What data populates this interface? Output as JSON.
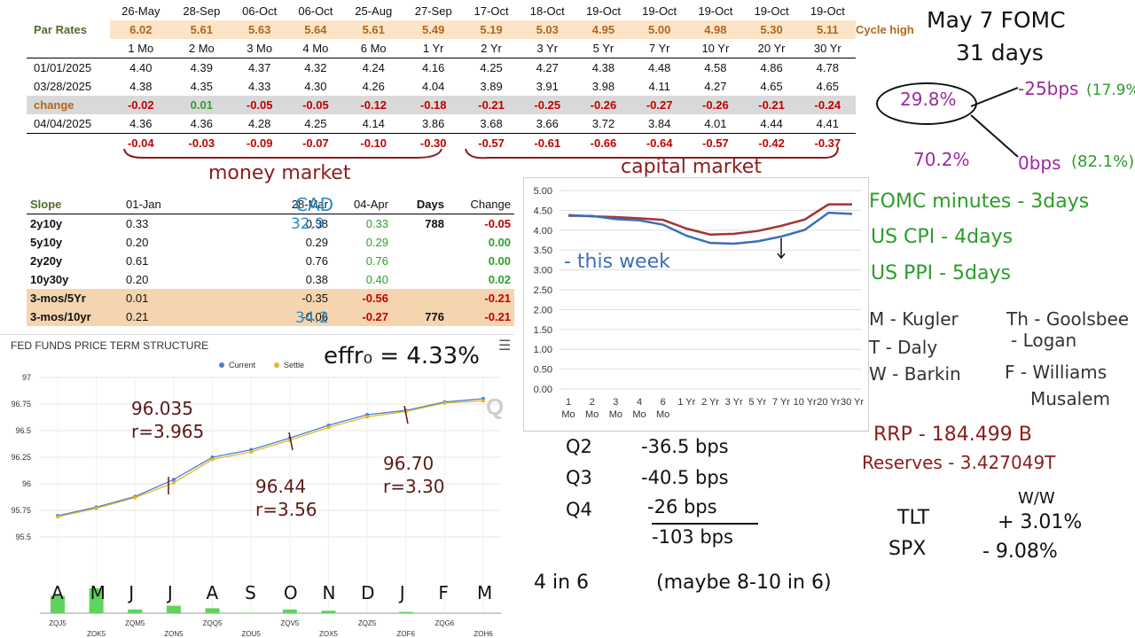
{
  "rates_table": {
    "dates": [
      "26-May",
      "28-Sep",
      "06-Oct",
      "06-Oct",
      "25-Aug",
      "27-Sep",
      "17-Oct",
      "18-Oct",
      "19-Oct",
      "19-Oct",
      "19-Oct",
      "19-Oct",
      "19-Oct"
    ],
    "par_label": "Par Rates",
    "par_values": [
      "6.02",
      "5.61",
      "5.63",
      "5.64",
      "5.61",
      "5.49",
      "5.19",
      "5.03",
      "4.95",
      "5.00",
      "4.98",
      "5.30",
      "5.11"
    ],
    "cycle_high_label": "Cycle high",
    "tenors": [
      "1 Mo",
      "2 Mo",
      "3 Mo",
      "4 Mo",
      "6 Mo",
      "1 Yr",
      "2 Yr",
      "3 Yr",
      "5 Yr",
      "7 Yr",
      "10 Yr",
      "20 Yr",
      "30 Yr"
    ],
    "rows": [
      {
        "label": "01/01/2025",
        "values": [
          "4.40",
          "4.39",
          "4.37",
          "4.32",
          "4.24",
          "4.16",
          "4.25",
          "4.27",
          "4.38",
          "4.48",
          "4.58",
          "4.86",
          "4.78"
        ]
      },
      {
        "label": "03/28/2025",
        "values": [
          "4.38",
          "4.35",
          "4.33",
          "4.30",
          "4.26",
          "4.04",
          "3.89",
          "3.91",
          "3.98",
          "4.11",
          "4.27",
          "4.65",
          "4.65"
        ]
      }
    ],
    "change_label": "change",
    "change_values": [
      "-0.02",
      "0.01",
      "-0.05",
      "-0.05",
      "-0.12",
      "-0.18",
      "-0.21",
      "-0.25",
      "-0.26",
      "-0.27",
      "-0.26",
      "-0.21",
      "-0.24"
    ],
    "row_0404": {
      "label": "04/04/2025",
      "values": [
        "4.36",
        "4.36",
        "4.28",
        "4.25",
        "4.14",
        "3.86",
        "3.68",
        "3.66",
        "3.72",
        "3.84",
        "4.01",
        "4.44",
        "4.41"
      ]
    },
    "delta_values": [
      "-0.04",
      "-0.03",
      "-0.09",
      "-0.07",
      "-0.10",
      "-0.30",
      "-0.57",
      "-0.61",
      "-0.66",
      "-0.64",
      "-0.57",
      "-0.42",
      "-0.37"
    ]
  },
  "slope_table": {
    "headers": [
      "Slope",
      "01-Jan",
      "28-Mar",
      "04-Apr",
      "Days",
      "Change"
    ],
    "rows": [
      {
        "name": "2y10y",
        "jan": "0.33",
        "mar": "0.38",
        "apr": "0.33",
        "days": "788",
        "change": "-0.05"
      },
      {
        "name": "5y10y",
        "jan": "0.20",
        "mar": "0.29",
        "apr": "0.29",
        "days": "",
        "change": "0.00"
      },
      {
        "name": "2y20y",
        "jan": "0.61",
        "mar": "0.76",
        "apr": "0.76",
        "days": "",
        "change": "0.00"
      },
      {
        "name": "10y30y",
        "jan": "0.20",
        "mar": "0.38",
        "apr": "0.40",
        "days": "",
        "change": "0.02"
      },
      {
        "name": "3-mos/5Yr",
        "jan": "0.01",
        "mar": "-0.35",
        "apr": "-0.56",
        "days": "",
        "change": "-0.21"
      },
      {
        "name": "3-mos/10yr",
        "jan": "0.21",
        "mar": "-0.06",
        "apr": "-0.27",
        "days": "776",
        "change": "-0.21"
      }
    ]
  },
  "fed_funds": {
    "title": "FED FUNDS PRICE TERM STRUCTURE",
    "menu_icon": "hamburger-menu-icon",
    "legend": [
      "Current",
      "Settle"
    ],
    "colors": {
      "current": "#4a7fd6",
      "settle": "#e0b828",
      "bars": "#5fd35f"
    },
    "watermark": "Q"
  },
  "chart_data": [
    {
      "type": "line",
      "title": "FED FUNDS PRICE TERM STRUCTURE",
      "categories": [
        "ZQJ5",
        "ZQK5",
        "ZQM5",
        "ZQN5",
        "ZQQ5",
        "ZQU5",
        "ZQV5",
        "ZQX5",
        "ZQZ5",
        "ZQF6",
        "ZQG6",
        "ZQH6"
      ],
      "series": [
        {
          "name": "Current",
          "values": [
            95.7,
            95.78,
            95.88,
            96.04,
            96.25,
            96.32,
            96.43,
            96.55,
            96.65,
            96.69,
            96.77,
            96.8
          ]
        },
        {
          "name": "Settle",
          "values": [
            95.69,
            95.77,
            95.87,
            96.01,
            96.23,
            96.3,
            96.41,
            96.53,
            96.63,
            96.68,
            96.76,
            96.78
          ]
        }
      ],
      "volume": [
        0.7,
        1.0,
        0.15,
        0.3,
        0.2,
        0.02,
        0.15,
        0.1,
        0,
        0.05,
        0,
        0
      ],
      "ylim": [
        95.25,
        97
      ],
      "yticks": [
        "95.5",
        "95.75",
        "96",
        "96.25",
        "96.5",
        "96.75",
        "97"
      ],
      "grid": true,
      "legend": "top-center"
    },
    {
      "type": "line",
      "categories": [
        "1\nMo",
        "2\nMo",
        "3\nMo",
        "4\nMo",
        "6\nMo",
        "1 Yr",
        "2 Yr",
        "3 Yr",
        "5 Yr",
        "7 Yr",
        "10 Yr",
        "20 Yr",
        "30 Yr"
      ],
      "series": [
        {
          "name": "03/28/2025",
          "values": [
            4.38,
            4.35,
            4.33,
            4.3,
            4.26,
            4.04,
            3.89,
            3.91,
            3.98,
            4.11,
            4.27,
            4.65,
            4.65
          ],
          "color": "#a83232"
        },
        {
          "name": "04/04/2025",
          "values": [
            4.36,
            4.36,
            4.28,
            4.25,
            4.14,
            3.86,
            3.68,
            3.66,
            3.72,
            3.84,
            4.01,
            4.44,
            4.41
          ],
          "color": "#3b6fb6"
        }
      ],
      "ylim": [
        0,
        5
      ],
      "yticks": [
        "0.00",
        "0.50",
        "1.00",
        "1.50",
        "2.00",
        "2.50",
        "3.00",
        "3.50",
        "4.00",
        "4.50",
        "5.00"
      ],
      "grid": true
    }
  ],
  "notes": {
    "money_market": "money market",
    "capital_market": "capital market",
    "cad": "CAD",
    "cad_val1": "32.9",
    "cad_val2": "34.2",
    "this_week": "- this week",
    "effr": "effr₀ = 4.33%",
    "fomc1": "May 7 FOMC",
    "fomc2": "31 days",
    "prob_cut_pct": "29.8%",
    "prob_cut_bps": "-25bps",
    "prob_cut_alt": "(17.9%)",
    "prob_hold_pct": "70.2%",
    "prob_hold_bps": "0bps",
    "prob_hold_alt": "(82.1%)",
    "fomc_minutes": "FOMC minutes - 3days",
    "us_cpi": "US CPI - 4days",
    "us_ppi": "US PPI - 5days",
    "speakers": [
      "M - Kugler",
      "T - Daly",
      "W - Barkin",
      "Th - Goolsbee",
      "- Logan",
      "F - Williams",
      "Musalem"
    ],
    "ff_annot": [
      {
        "price": "96.035",
        "rate": "r=3.965"
      },
      {
        "price": "96.44",
        "rate": "r=3.56"
      },
      {
        "price": "96.70",
        "rate": "r=3.30"
      }
    ],
    "month_letters": [
      "A",
      "M",
      "J",
      "J",
      "A",
      "S",
      "O",
      "N",
      "D",
      "J",
      "F",
      "M"
    ],
    "gdp": [
      {
        "q": "Q2",
        "bps": "-36.5 bps"
      },
      {
        "q": "Q3",
        "bps": "-40.5 bps"
      },
      {
        "q": "Q4",
        "bps": "-26 bps"
      }
    ],
    "gdp_total": "-103 bps",
    "cuts": "4 in 6",
    "cuts_alt": "(maybe 8-10 in 6)",
    "rrp": "RRP - 184.499 B",
    "reserves": "Reserves - 3.427049T",
    "ww": "W/W",
    "tlt_label": "TLT",
    "tlt_val": "+ 3.01%",
    "spx_label": "SPX",
    "spx_val": "- 9.08%"
  }
}
